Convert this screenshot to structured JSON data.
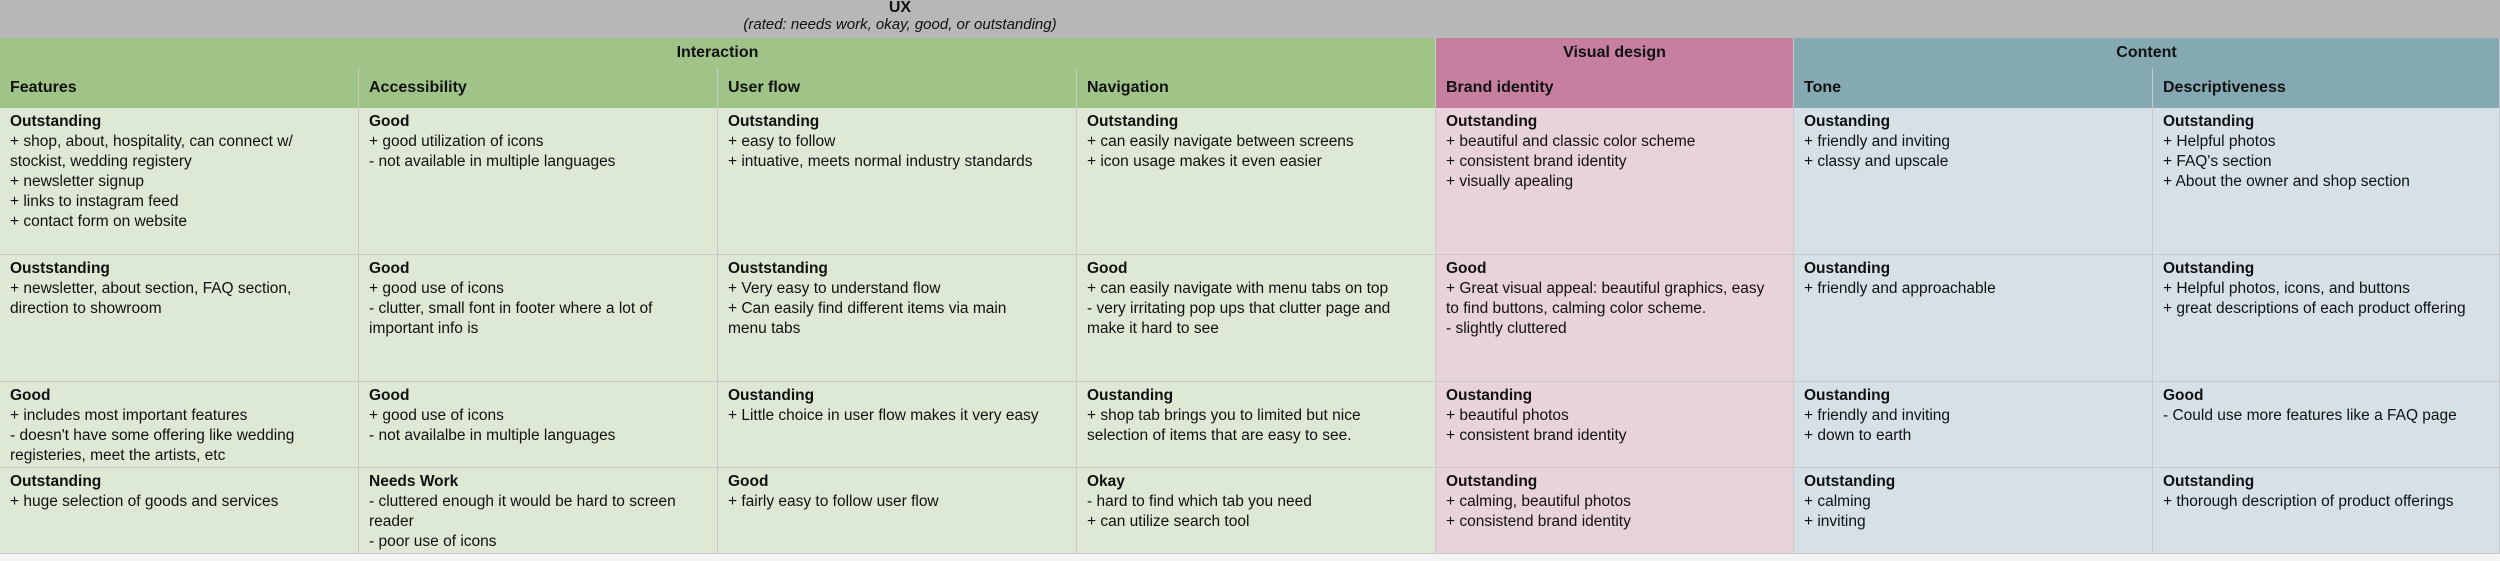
{
  "title": "UX",
  "subtitle": "(rated: needs work, okay, good, or outstanding)",
  "groups": {
    "interaction": "Interaction",
    "visual": "Visual design",
    "content": "Content"
  },
  "headers": {
    "features": "Features",
    "accessibility": "Accessibility",
    "userflow": "User flow",
    "navigation": "Navigation",
    "brand": "Brand identity",
    "tone": "Tone",
    "descriptiveness": "Descriptiveness"
  },
  "rows": [
    {
      "features": {
        "rating": "Outstanding",
        "lines": [
          "+ shop, about, hospitality, can connect w/",
          "stockist, wedding registery",
          "+ newsletter signup",
          "+ links to instagram feed",
          "+ contact form on website"
        ]
      },
      "accessibility": {
        "rating": "Good",
        "lines": [
          "+ good utilization of icons",
          "- not available in multiple languages"
        ]
      },
      "userflow": {
        "rating": "Outstanding",
        "lines": [
          "+ easy to follow",
          "+ intuative, meets normal industry standards"
        ]
      },
      "navigation": {
        "rating": "Outstanding",
        "lines": [
          "+ can easily navigate between screens",
          "+ icon usage makes it even easier"
        ]
      },
      "brand": {
        "rating": "Outstanding",
        "lines": [
          "+ beautiful and classic color scheme",
          "+ consistent brand identity",
          "+ visually apealing"
        ]
      },
      "tone": {
        "rating": "Oustanding",
        "lines": [
          "+ friendly and inviting",
          "+ classy and upscale"
        ]
      },
      "descriptiveness": {
        "rating": "Outstanding",
        "lines": [
          "+ Helpful photos",
          "+ FAQ's section",
          "+ About the owner and shop section"
        ]
      }
    },
    {
      "features": {
        "rating": "Ouststanding",
        "lines": [
          "+ newsletter, about section, FAQ section,",
          "direction to showroom"
        ]
      },
      "accessibility": {
        "rating": "Good",
        "lines": [
          "+ good use of icons",
          "- clutter, small font in footer where a lot of",
          "important info is"
        ]
      },
      "userflow": {
        "rating": "Ouststanding",
        "lines": [
          "+ Very easy to understand flow",
          "+ Can easily find different items via main",
          "menu tabs"
        ]
      },
      "navigation": {
        "rating": "Good",
        "lines": [
          "+ can easily navigate with menu tabs on top",
          "- very irritating pop ups that clutter page and",
          "make it hard to see"
        ]
      },
      "brand": {
        "rating": "Good",
        "lines": [
          "+ Great visual appeal: beautiful graphics, easy",
          "to find buttons, calming color scheme.",
          "- slightly cluttered"
        ]
      },
      "tone": {
        "rating": "Oustanding",
        "lines": [
          "+ friendly and approachable"
        ]
      },
      "descriptiveness": {
        "rating": "Outstanding",
        "lines": [
          "+ Helpful photos, icons, and buttons",
          "+ great descriptions of each product offering"
        ]
      }
    },
    {
      "features": {
        "rating": "Good",
        "lines": [
          "+ includes most important features",
          "- doesn't have some offering like wedding",
          "registeries, meet the artists, etc"
        ]
      },
      "accessibility": {
        "rating": "Good",
        "lines": [
          "+ good use of icons",
          "- not availalbe in multiple languages"
        ]
      },
      "userflow": {
        "rating": "Oustanding",
        "lines": [
          "+ Little choice in user flow makes it very easy"
        ]
      },
      "navigation": {
        "rating": "Oustanding",
        "lines": [
          "+ shop tab brings you to limited but nice",
          "selection of items that are easy to see."
        ]
      },
      "brand": {
        "rating": "Oustanding",
        "lines": [
          "+ beautiful photos",
          "+ consistent brand identity"
        ]
      },
      "tone": {
        "rating": "Oustanding",
        "lines": [
          "+ friendly and inviting",
          "+ down to earth"
        ]
      },
      "descriptiveness": {
        "rating": "Good",
        "lines": [
          "- Could use more features like a FAQ page"
        ]
      }
    },
    {
      "features": {
        "rating": "Outstanding",
        "lines": [
          "+ huge selection of goods and services"
        ]
      },
      "accessibility": {
        "rating": "Needs Work",
        "lines": [
          "- cluttered enough it would be hard to screen",
          "reader",
          "- poor use of icons"
        ]
      },
      "userflow": {
        "rating": "Good",
        "lines": [
          "+ fairly easy to follow user flow"
        ]
      },
      "navigation": {
        "rating": "Okay",
        "lines": [
          "- hard to find which tab you need",
          "+ can utilize search tool"
        ]
      },
      "brand": {
        "rating": "Outstanding",
        "lines": [
          "+ calming, beautiful photos",
          "+ consistend brand identity"
        ]
      },
      "tone": {
        "rating": "Outstanding",
        "lines": [
          "+ calming",
          "+ inviting"
        ]
      },
      "descriptiveness": {
        "rating": "Outstanding",
        "lines": [
          "+ thorough description of product offerings"
        ]
      }
    }
  ]
}
